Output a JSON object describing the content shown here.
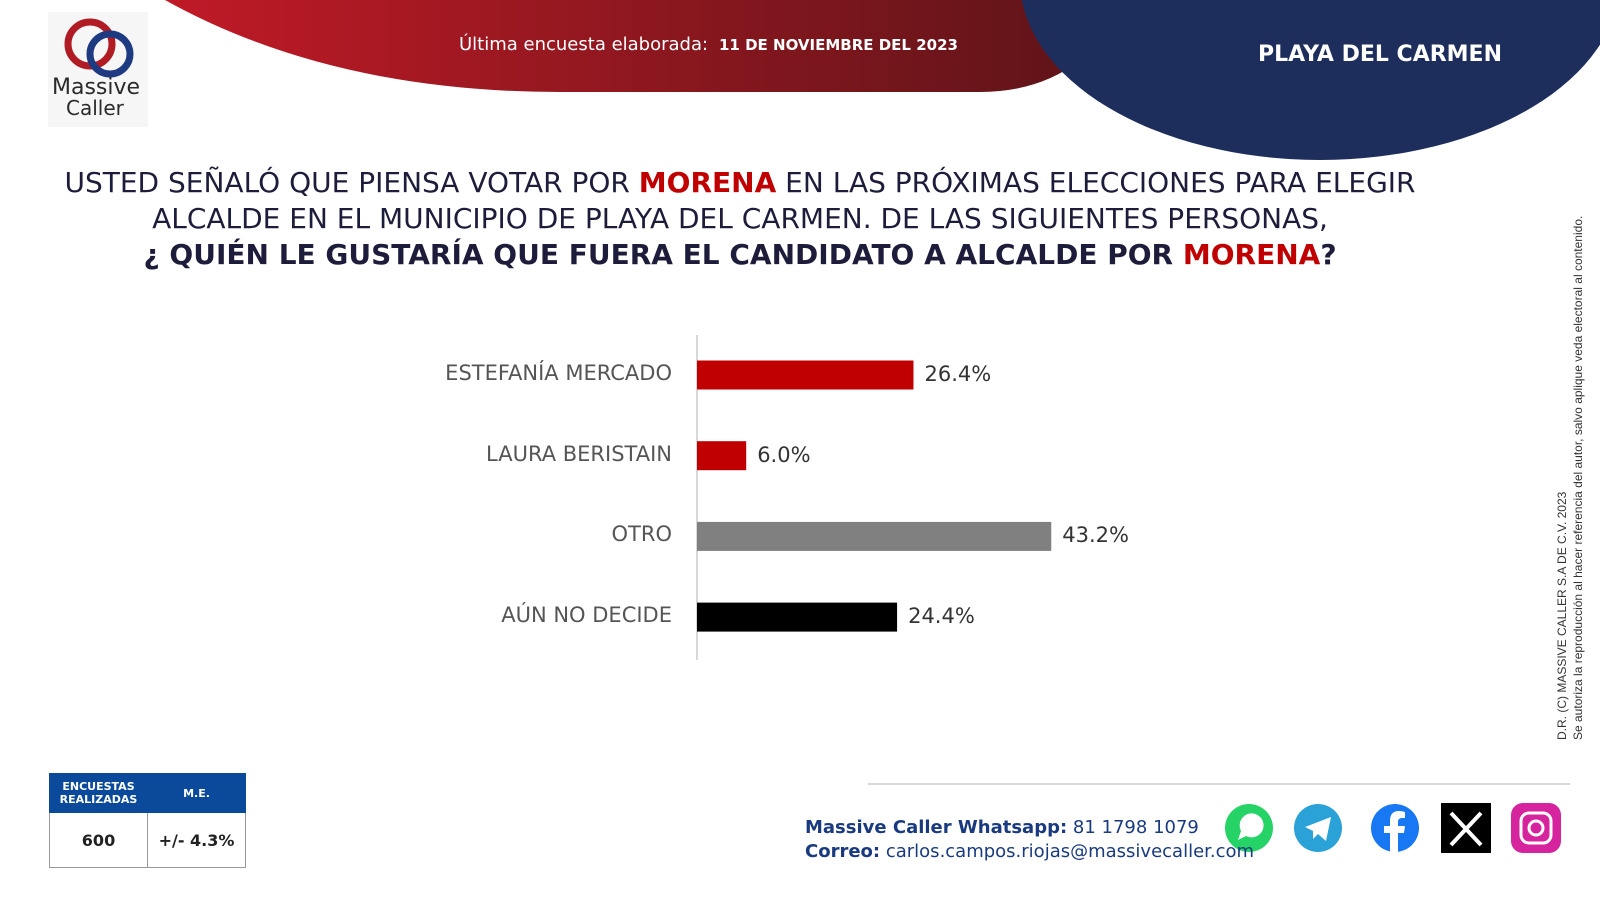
{
  "logo": {
    "line1": "Massive",
    "line2": "Caller"
  },
  "header": {
    "survey_label": "Última encuesta elaborada:",
    "survey_date": "11 DE NOVIEMBRE DEL 2023",
    "location": "PLAYA DEL CARMEN"
  },
  "question": {
    "line1": [
      "USTED SEÑALÓ QUE PIENSA VOTAR POR",
      "MORENA",
      "EN LAS PRÓXIMAS ELECCIONES PARA ELEGIR"
    ],
    "line2": "ALCALDE EN EL MUNICIPIO DE PLAYA DEL CARMEN. DE LAS SIGUIENTES PERSONAS,",
    "line3": [
      "¿ QUIÉN LE GUSTARÍA QUE FUERA EL CANDIDATO A ALCALDE POR",
      "MORENA",
      "?"
    ]
  },
  "chart_data": {
    "type": "hbar",
    "categories": [
      "ESTEFANÍA MERCADO",
      "LAURA BERISTAIN",
      "OTRO",
      "AÚN NO DECIDE"
    ],
    "values": [
      26.4,
      6.0,
      43.2,
      24.4
    ],
    "value_labels": [
      "26.4%",
      "6.0%",
      "43.2%",
      "24.4%"
    ],
    "colors": [
      "#c00000",
      "#c00000",
      "#808080",
      "#000000"
    ]
  },
  "sample_table": {
    "headers": [
      "ENCUESTAS REALIZADAS",
      "M.E."
    ],
    "row": [
      "600",
      "+/- 4.3%"
    ]
  },
  "contact": {
    "whatsapp_label": "Massive Caller Whatsapp:",
    "whatsapp_number": "81 1798 1079",
    "email_label": "Correo:",
    "email": "carlos.campos.riojas@massivecaller.com"
  },
  "copyright": {
    "line1": "D.R. (C) MASSIVE CALLER S.A DE C.V. 2023",
    "line2": "Se autoriza la reproducción al hacer referencia del autor, salvo aplique veda electoral al contenido."
  }
}
